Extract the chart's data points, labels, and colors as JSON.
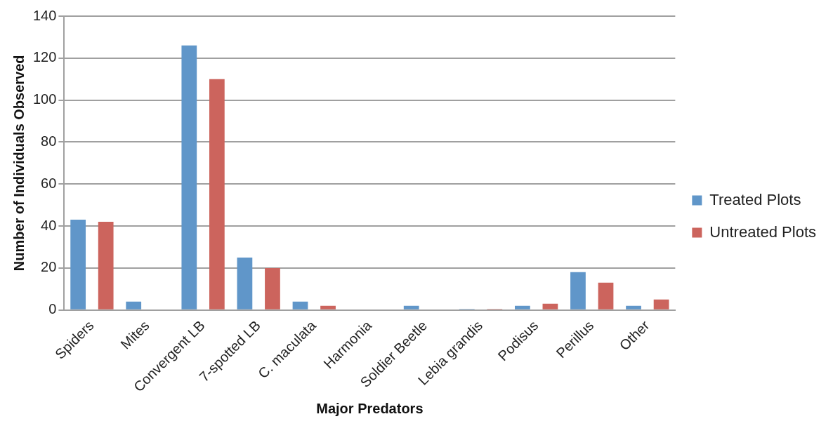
{
  "chart_data": {
    "type": "bar",
    "xlabel": "Major Predators",
    "ylabel": "Number of Individuals Observed",
    "categories": [
      "Spiders",
      "Mites",
      "Convergent LB",
      "7-spotted LB",
      "C. maculata",
      "Harmonia",
      "Soldier Beetle",
      "Lebia grandis",
      "Podisus",
      "Perillus",
      "Other"
    ],
    "series": [
      {
        "name": "Treated Plots",
        "color": "#6096c9",
        "values": [
          43,
          4,
          126,
          25,
          4,
          0,
          2,
          0.5,
          2,
          18,
          2
        ]
      },
      {
        "name": "Untreated Plots",
        "color": "#cc645d",
        "values": [
          42,
          0,
          110,
          20,
          2,
          0,
          0,
          0.5,
          3,
          13,
          5
        ]
      }
    ],
    "ylim": [
      0,
      140
    ],
    "yticks": [
      0,
      20,
      40,
      60,
      80,
      100,
      120,
      140
    ],
    "grid": "y",
    "legend": "right"
  }
}
